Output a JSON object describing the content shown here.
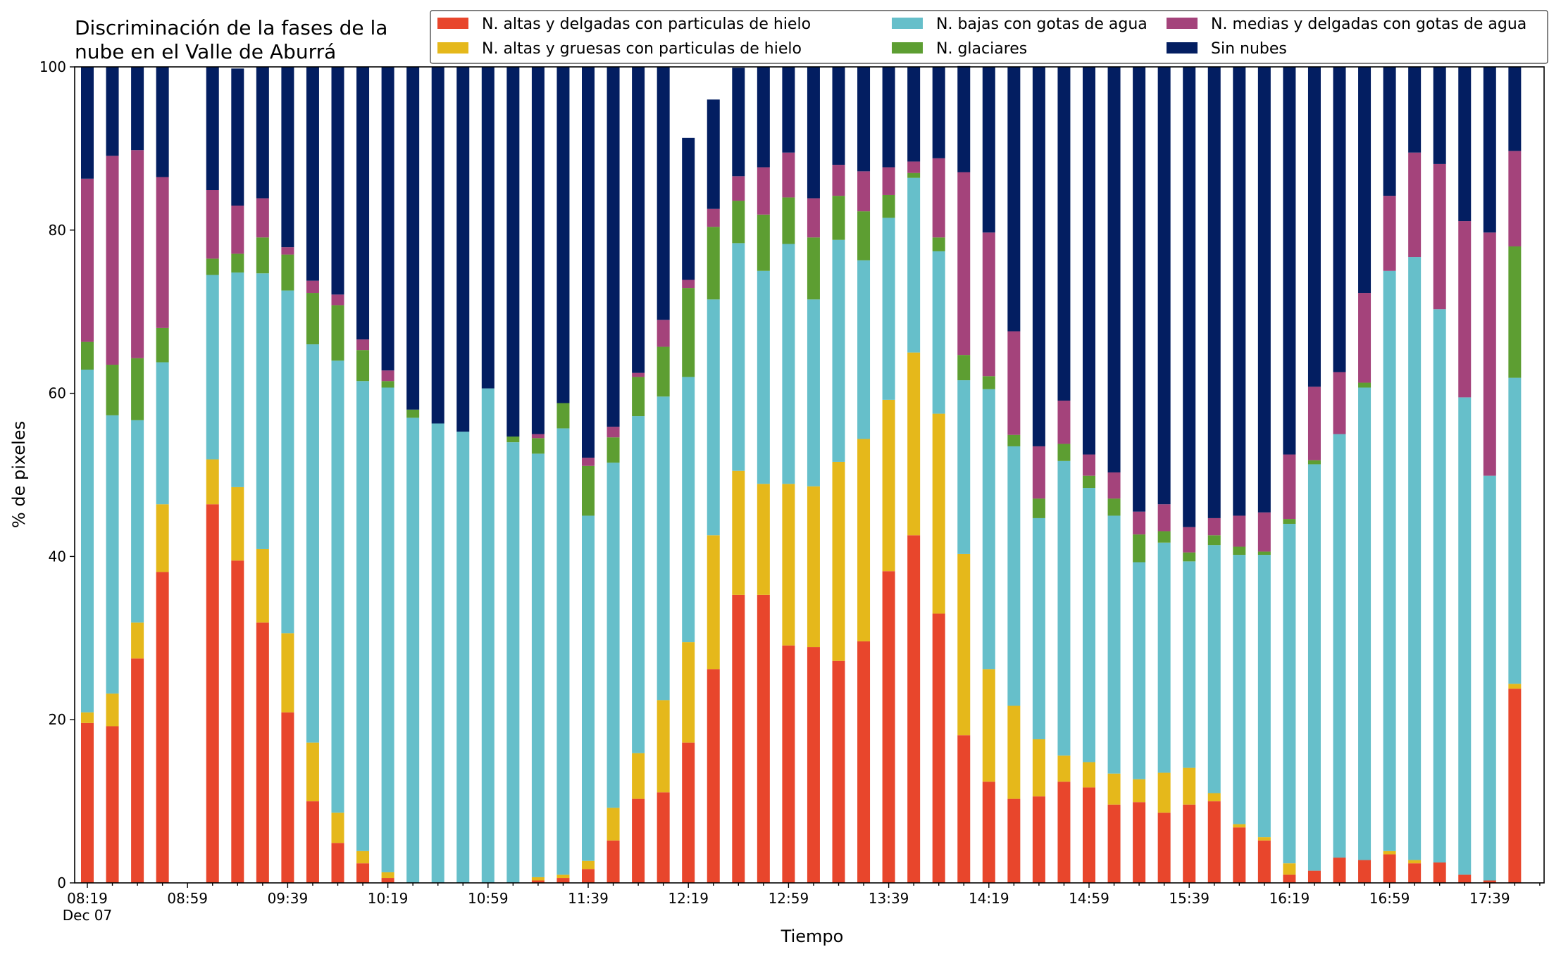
{
  "chart_data": {
    "type": "bar",
    "stacked": true,
    "title_lines": [
      "Discriminación de la fases de la",
      "nube en el Valle de Aburrá"
    ],
    "xlabel": "Tiempo",
    "ylabel": "% de pixeles",
    "ylim": [
      0,
      100
    ],
    "yticks": [
      0,
      20,
      40,
      60,
      80,
      100
    ],
    "xtick_labels": [
      "08:19",
      "08:59",
      "09:39",
      "10:19",
      "10:59",
      "11:39",
      "12:19",
      "12:59",
      "13:39",
      "14:19",
      "14:59",
      "15:39",
      "16:19",
      "16:59",
      "17:39"
    ],
    "xtick_sublabel": "Dec 07",
    "legend_position": "top-right",
    "legend_columns": 3,
    "grid": false,
    "categories": [
      "08:19",
      "08:29",
      "08:39",
      "08:49",
      "08:59",
      "09:09",
      "09:19",
      "09:29",
      "09:39",
      "09:49",
      "09:59",
      "10:09",
      "10:19",
      "10:29",
      "10:39",
      "10:49",
      "10:59",
      "11:09",
      "11:19",
      "11:29",
      "11:39",
      "11:49",
      "11:59",
      "12:09",
      "12:19",
      "12:29",
      "12:39",
      "12:49",
      "12:59",
      "13:09",
      "13:19",
      "13:29",
      "13:39",
      "13:49",
      "13:59",
      "14:09",
      "14:19",
      "14:29",
      "14:39",
      "14:49",
      "14:59",
      "15:09",
      "15:19",
      "15:29",
      "15:39",
      "15:49",
      "15:59",
      "16:09",
      "16:19",
      "16:29",
      "16:39",
      "16:49",
      "16:59",
      "17:09",
      "17:19",
      "17:29",
      "17:39",
      "17:49"
    ],
    "series": [
      {
        "name": "N. altas y delgadas con particulas de hielo",
        "color": "#e8462c",
        "values": [
          19.6,
          19.2,
          27.5,
          38.1,
          0,
          46.4,
          39.5,
          31.9,
          20.9,
          10.0,
          4.9,
          2.4,
          0.6,
          0,
          0,
          0,
          0,
          0,
          0.3,
          0.6,
          1.7,
          5.2,
          10.3,
          11.1,
          17.2,
          26.2,
          35.3,
          35.3,
          29.1,
          28.9,
          27.2,
          29.6,
          38.2,
          42.6,
          33.0,
          18.1,
          12.4,
          10.3,
          10.6,
          12.4,
          11.7,
          9.6,
          9.9,
          8.6,
          9.6,
          10.0,
          6.8,
          5.2,
          1.0,
          1.5,
          3.1,
          2.8,
          3.5,
          2.4,
          2.5,
          1.0,
          0.3,
          23.8
        ]
      },
      {
        "name": "N. altas y gruesas con particulas de hielo",
        "color": "#e5b81b",
        "values": [
          1.3,
          4.0,
          4.4,
          8.3,
          0,
          5.5,
          9.0,
          9.0,
          9.7,
          7.2,
          3.7,
          1.5,
          0.7,
          0,
          0,
          0,
          0,
          0,
          0.4,
          0.4,
          1.0,
          4.0,
          5.6,
          11.3,
          12.3,
          16.4,
          15.2,
          13.6,
          19.8,
          19.7,
          24.4,
          24.8,
          21.0,
          22.4,
          24.5,
          22.2,
          13.8,
          11.4,
          7.0,
          3.2,
          3.1,
          3.8,
          2.8,
          4.9,
          4.5,
          1.0,
          0.4,
          0.4,
          1.4,
          0,
          0,
          0,
          0.4,
          0.4,
          0,
          0,
          0,
          0.6
        ]
      },
      {
        "name": "N. bajas con gotas de agua",
        "color": "#66bfca",
        "values": [
          42.0,
          34.1,
          24.8,
          17.4,
          0,
          22.6,
          26.3,
          33.8,
          42.0,
          48.8,
          55.4,
          57.6,
          59.4,
          57.0,
          56.3,
          55.3,
          60.6,
          54.0,
          51.9,
          54.7,
          42.3,
          42.3,
          41.3,
          37.2,
          32.5,
          28.9,
          27.9,
          26.1,
          29.4,
          22.9,
          27.2,
          21.9,
          22.3,
          21.4,
          19.9,
          21.3,
          34.3,
          31.8,
          27.1,
          36.1,
          33.6,
          31.6,
          26.6,
          28.2,
          25.3,
          30.4,
          33.0,
          34.6,
          41.6,
          49.8,
          51.9,
          57.9,
          71.1,
          73.9,
          67.8,
          58.5,
          49.6,
          37.5
        ]
      },
      {
        "name": "N. glaciares",
        "color": "#5d9e32",
        "values": [
          3.4,
          6.2,
          7.6,
          4.2,
          0,
          2.0,
          2.3,
          4.4,
          4.4,
          6.3,
          6.8,
          3.8,
          0.8,
          1.0,
          0,
          0,
          0,
          0.7,
          1.9,
          3.1,
          6.1,
          3.1,
          4.8,
          6.1,
          10.9,
          8.9,
          5.2,
          6.9,
          5.7,
          7.6,
          5.4,
          6.0,
          2.8,
          0.6,
          1.7,
          3.1,
          1.6,
          1.4,
          2.4,
          2.1,
          1.5,
          2.1,
          3.4,
          1.4,
          1.1,
          1.2,
          1.0,
          0.4,
          0.6,
          0.5,
          0,
          0.6,
          0,
          0,
          0,
          0,
          0,
          16.1
        ]
      },
      {
        "name": "N. medias y delgadas con gotas de agua",
        "color": "#a4437b",
        "values": [
          20.0,
          25.6,
          25.5,
          18.5,
          0,
          8.4,
          5.9,
          4.8,
          0.9,
          1.5,
          1.3,
          1.3,
          1.3,
          0,
          0,
          0,
          0,
          0,
          0.5,
          0,
          1.0,
          1.3,
          0.5,
          3.3,
          1.0,
          2.2,
          3.0,
          5.8,
          5.5,
          4.8,
          3.8,
          4.9,
          3.4,
          1.4,
          9.7,
          22.4,
          17.6,
          12.7,
          6.4,
          5.3,
          2.6,
          3.2,
          2.8,
          3.3,
          3.1,
          2.1,
          3.8,
          4.8,
          7.9,
          9.0,
          7.6,
          11.0,
          9.2,
          12.8,
          17.8,
          21.6,
          29.8,
          11.7
        ]
      },
      {
        "name": "Sin nubes",
        "color": "#031e61",
        "values": [
          13.7,
          10.9,
          10.2,
          13.5,
          0,
          15.1,
          16.8,
          16.1,
          22.1,
          26.2,
          27.9,
          33.4,
          37.2,
          42.0,
          43.7,
          44.7,
          39.4,
          45.3,
          45.0,
          41.2,
          47.9,
          44.1,
          37.5,
          31.0,
          17.4,
          13.4,
          13.3,
          12.3,
          10.5,
          16.1,
          12.0,
          12.8,
          12.3,
          11.6,
          11.2,
          13.0,
          20.3,
          32.4,
          46.5,
          40.9,
          47.5,
          49.7,
          54.5,
          53.6,
          56.4,
          55.3,
          55.0,
          54.6,
          47.5,
          39.2,
          37.4,
          27.7,
          15.8,
          10.5,
          11.9,
          18.9,
          20.3,
          10.3
        ]
      }
    ]
  }
}
